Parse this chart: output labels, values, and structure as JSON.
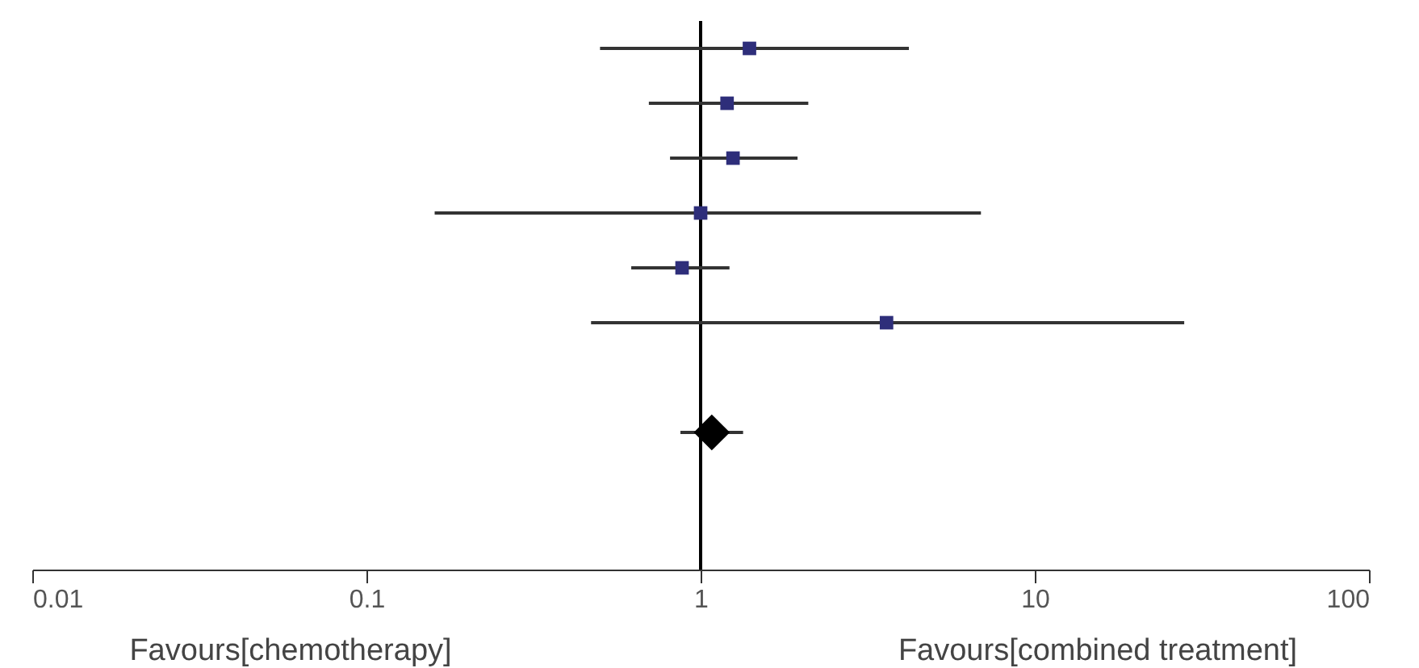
{
  "chart_data": {
    "type": "scatter",
    "orientation": "horizontal",
    "log": "x",
    "categories": [
      null,
      null,
      null,
      null,
      null,
      null,
      null,
      null,
      null,
      null
    ],
    "series": [
      {
        "color": "#2e2e7a",
        "marker": "square",
        "values": [
          1.4,
          1.2,
          1.25,
          1.0,
          0.88,
          3.6,
          null,
          null,
          null,
          null
        ],
        "errors": [
          [
            0.5,
            4.2
          ],
          [
            0.7,
            2.1
          ],
          [
            0.81,
            1.95
          ],
          [
            0.16,
            6.9
          ],
          [
            0.62,
            1.22
          ],
          [
            0.47,
            28
          ],
          null,
          null,
          null,
          null
        ]
      },
      {
        "color": "#000000",
        "marker": "diamond",
        "values": [
          null,
          null,
          null,
          null,
          null,
          null,
          null,
          1.08,
          null,
          null
        ],
        "errors": [
          null,
          null,
          null,
          null,
          null,
          null,
          null,
          [
            0.87,
            1.34
          ],
          null,
          null
        ]
      }
    ],
    "xlim": [
      0.01,
      100
    ],
    "xticks": [
      0.01,
      0.1,
      1,
      10,
      100
    ],
    "grid": false,
    "tick_labels": "x",
    "ref_lines": [
      {
        "axis": "x",
        "value": 1,
        "color": "#000000"
      }
    ],
    "annotations": [
      "Favours[chemotherapy]",
      "Favours[combined treatment]"
    ]
  }
}
